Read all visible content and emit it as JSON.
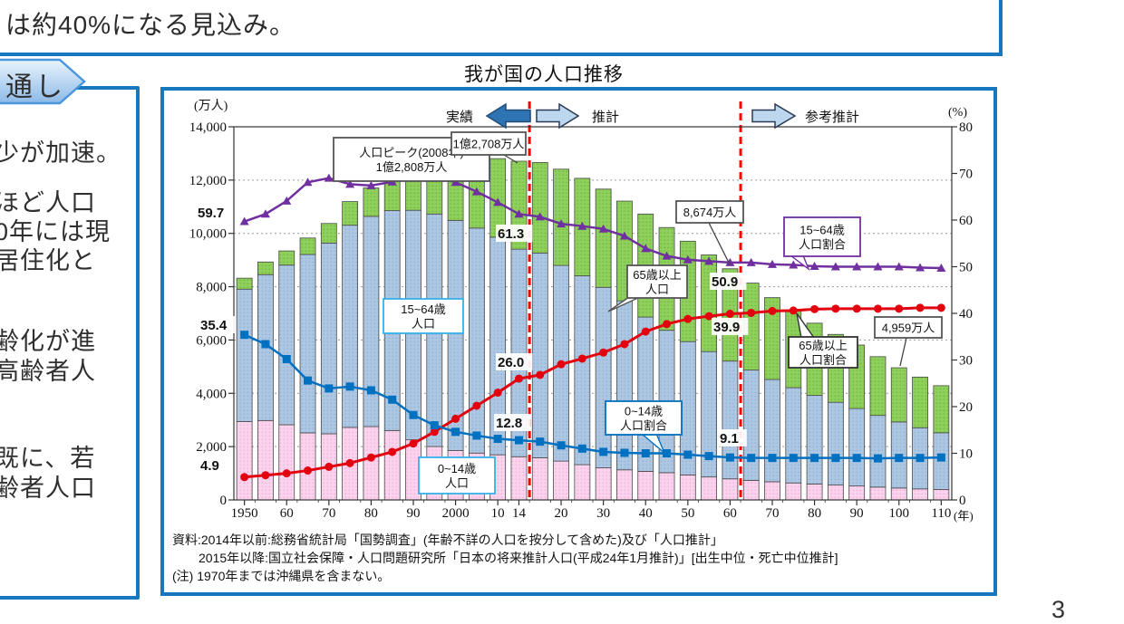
{
  "page": {
    "top_text": "は約40%になる見込み。",
    "page_number": "3"
  },
  "header_badge": {
    "label": "通し"
  },
  "left_panel": {
    "lines": [
      "少が加速。",
      "ほど人口",
      "0年には現",
      "居住化と",
      "齢化が進",
      "高齢者人",
      "既に、若",
      "齢者人口"
    ]
  },
  "chart": {
    "title": "我が国の人口推移",
    "unit_left": "(万人)",
    "unit_right": "(%)",
    "unit_x": "(年)",
    "legend": {
      "actual": "実績",
      "projection": "推計",
      "reference": "参考推計"
    },
    "source_lines": [
      "資料:2014年以前:総務省統計局「国勢調査」(年齢不詳の人口を按分して含めた)及び「人口推計」",
      "2015年以降:国立社会保障・人口問題研究所「日本の将来推計人口(平成24年1月推計)」[出生中位・死亡中位推計]",
      "(注) 1970年までは沖縄県を含まない。"
    ],
    "annotations": {
      "peak": {
        "lines": [
          "人口ピーク(2008年)",
          "1億2,808万人"
        ]
      },
      "pop2014": {
        "lines": [
          "1億2,708万人"
        ]
      },
      "pop2060": {
        "lines": [
          "8,674万人"
        ]
      },
      "pop2100": {
        "lines": [
          "4,959万人"
        ]
      },
      "bar65": {
        "lines": [
          "65歳以上",
          "人口"
        ]
      },
      "bar1564": {
        "lines": [
          "15~64歳",
          "人口"
        ]
      },
      "bar014": {
        "lines": [
          "0~14歳",
          "人口"
        ]
      },
      "ratio1564": {
        "lines": [
          "15~64歳",
          "人口割合"
        ]
      },
      "ratio65": {
        "lines": [
          "65歳以上",
          "人口割合"
        ]
      },
      "ratio014": {
        "lines": [
          "0~14歳",
          "人口割合"
        ]
      }
    },
    "point_labels": [
      {
        "key": "p597",
        "text": "59.7"
      },
      {
        "key": "p354",
        "text": "35.4"
      },
      {
        "key": "p49",
        "text": "4.9"
      },
      {
        "key": "p613",
        "text": "61.3"
      },
      {
        "key": "p260",
        "text": "26.0"
      },
      {
        "key": "p128",
        "text": "12.8"
      },
      {
        "key": "p509",
        "text": "50.9"
      },
      {
        "key": "p399",
        "text": "39.9"
      },
      {
        "key": "p91",
        "text": "9.1"
      }
    ]
  },
  "chart_data": {
    "type": "combo",
    "categories": [
      1950,
      1955,
      1960,
      1965,
      1970,
      1975,
      1980,
      1985,
      1990,
      1995,
      2000,
      2005,
      2010,
      2014,
      2015,
      2020,
      2025,
      2030,
      2035,
      2040,
      2045,
      2050,
      2055,
      2060,
      2065,
      2070,
      2075,
      2080,
      2085,
      2090,
      2095,
      2100,
      2105,
      2110
    ],
    "x_ticks": [
      {
        "slot": 0,
        "label": "1950"
      },
      {
        "slot": 2,
        "label": "60"
      },
      {
        "slot": 4,
        "label": "70"
      },
      {
        "slot": 6,
        "label": "80"
      },
      {
        "slot": 8,
        "label": "90"
      },
      {
        "slot": 10,
        "label": "2000"
      },
      {
        "slot": 12,
        "label": "10"
      },
      {
        "slot": 13,
        "label": "14"
      },
      {
        "slot": 15,
        "label": "20"
      },
      {
        "slot": 17,
        "label": "30"
      },
      {
        "slot": 19,
        "label": "40"
      },
      {
        "slot": 21,
        "label": "50"
      },
      {
        "slot": 23,
        "label": "60"
      },
      {
        "slot": 25,
        "label": "70"
      },
      {
        "slot": 27,
        "label": "80"
      },
      {
        "slot": 29,
        "label": "90"
      },
      {
        "slot": 31,
        "label": "100"
      },
      {
        "slot": 33,
        "label": "110"
      }
    ],
    "axis_left": {
      "min": 0,
      "max": 14000,
      "tick_step": 2000
    },
    "axis_right": {
      "min": 0,
      "max": 80,
      "tick_step": 10
    },
    "divider_lines_between_slots": [
      [
        13,
        14
      ],
      [
        23,
        24
      ]
    ],
    "bar_series": [
      {
        "name": "0~14歳人口",
        "color": "#FBD3ED",
        "values": [
          2943,
          2980,
          2821,
          2517,
          2482,
          2723,
          2752,
          2604,
          2254,
          2003,
          1851,
          1759,
          1693,
          1623,
          1583,
          1457,
          1324,
          1204,
          1129,
          1073,
          1022,
          939,
          861,
          791,
          732,
          683,
          638,
          597,
          559,
          523,
          481,
          446,
          415,
          390
        ]
      },
      {
        "name": "15~64歳人口",
        "color": "#ADC7E3",
        "values": [
          4966,
          5473,
          5989,
          6693,
          7157,
          7584,
          7888,
          8251,
          8614,
          8726,
          8638,
          8442,
          8165,
          7785,
          7682,
          7341,
          7085,
          6773,
          6343,
          5787,
          5343,
          5001,
          4706,
          4418,
          4140,
          3835,
          3575,
          3324,
          3105,
          2906,
          2690,
          2480,
          2295,
          2130
        ]
      },
      {
        "name": "65歳以上人口",
        "color": "#8FD05C",
        "values": [
          411,
          475,
          532,
          617,
          733,
          887,
          1066,
          1250,
          1493,
          1828,
          2204,
          2576,
          2948,
          3300,
          3395,
          3612,
          3657,
          3685,
          3740,
          3868,
          3856,
          3768,
          3626,
          3464,
          3263,
          3072,
          2874,
          2711,
          2546,
          2382,
          2204,
          2033,
          1900,
          1766
        ]
      }
    ],
    "line_series": [
      {
        "name": "15~64歳人口割合",
        "color": "#7030A0",
        "marker": "triangle",
        "values": [
          59.7,
          61.3,
          64.1,
          68.1,
          69.0,
          67.7,
          67.4,
          68.2,
          69.7,
          69.5,
          68.1,
          66.1,
          63.8,
          61.3,
          60.7,
          59.2,
          58.7,
          58.1,
          56.6,
          53.9,
          52.3,
          51.5,
          51.2,
          50.9,
          50.9,
          50.5,
          50.4,
          50.1,
          50.0,
          50.0,
          50.0,
          50.0,
          49.8,
          49.7
        ]
      },
      {
        "name": "65歳以上人口割合",
        "color": "#E3000F",
        "marker": "circle",
        "values": [
          4.9,
          5.3,
          5.7,
          6.3,
          7.1,
          7.9,
          9.1,
          10.3,
          12.1,
          14.6,
          17.4,
          20.2,
          23.0,
          26.0,
          26.8,
          29.1,
          30.3,
          31.6,
          33.4,
          36.1,
          37.7,
          38.8,
          39.4,
          39.9,
          40.1,
          40.5,
          40.6,
          40.9,
          41.0,
          41.0,
          41.0,
          41.0,
          41.2,
          41.2
        ]
      },
      {
        "name": "0~14歳人口割合",
        "color": "#0070C0",
        "marker": "square",
        "values": [
          35.4,
          33.4,
          30.2,
          25.6,
          23.9,
          24.3,
          23.5,
          21.5,
          18.2,
          16.0,
          14.6,
          13.8,
          13.1,
          12.8,
          12.5,
          11.7,
          11.0,
          10.3,
          10.1,
          10.0,
          10.0,
          9.7,
          9.4,
          9.1,
          9.0,
          9.0,
          9.0,
          9.0,
          9.0,
          9.0,
          8.9,
          9.0,
          9.0,
          9.1
        ]
      }
    ],
    "title": "我が国の人口推移",
    "ylabel_left": "(万人)",
    "ylabel_right": "(%)",
    "xlabel": "(年)",
    "grid": "dotted-horizontal",
    "legend_position": "top"
  }
}
